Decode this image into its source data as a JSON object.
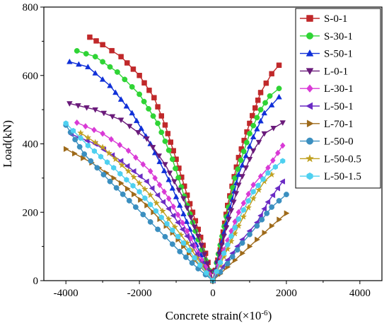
{
  "chart_data": {
    "type": "line",
    "title": "",
    "xlabel": "Concrete strain(×10",
    "xlabel_sup": "-6",
    "xlabel_suffix": ")",
    "ylabel": "Load(kN)",
    "xlim": [
      -4600,
      4600
    ],
    "ylim": [
      0,
      800
    ],
    "xticks": [
      -4000,
      -2000,
      0,
      2000,
      4000
    ],
    "yticks": [
      0,
      200,
      400,
      600,
      800
    ],
    "legend_position": "top-right",
    "grid": false,
    "series": [
      {
        "name": "S-0-1",
        "color": "#c0282a",
        "marker": "square",
        "left": [
          [
            -3350,
            712
          ],
          [
            -3000,
            690
          ],
          [
            -2500,
            655
          ],
          [
            -2000,
            600
          ],
          [
            -1600,
            535
          ],
          [
            -1300,
            455
          ],
          [
            -1000,
            355
          ],
          [
            -700,
            250
          ],
          [
            -400,
            150
          ],
          [
            -200,
            80
          ],
          [
            0,
            0
          ]
        ],
        "right": [
          [
            0,
            0
          ],
          [
            200,
            90
          ],
          [
            400,
            220
          ],
          [
            700,
            360
          ],
          [
            1000,
            460
          ],
          [
            1300,
            550
          ],
          [
            1600,
            605
          ],
          [
            1800,
            630
          ]
        ]
      },
      {
        "name": "S-30-1",
        "color": "#2fd435",
        "marker": "circle",
        "left": [
          [
            -3700,
            672
          ],
          [
            -3200,
            655
          ],
          [
            -2600,
            610
          ],
          [
            -2000,
            545
          ],
          [
            -1500,
            460
          ],
          [
            -1100,
            355
          ],
          [
            -700,
            220
          ],
          [
            -400,
            120
          ],
          [
            -200,
            60
          ],
          [
            0,
            0
          ]
        ],
        "right": [
          [
            0,
            0
          ],
          [
            250,
            130
          ],
          [
            600,
            300
          ],
          [
            1000,
            430
          ],
          [
            1300,
            500
          ],
          [
            1550,
            540
          ],
          [
            1800,
            562
          ]
        ]
      },
      {
        "name": "S-50-1",
        "color": "#1030d8",
        "marker": "triangle",
        "left": [
          [
            -3900,
            640
          ],
          [
            -3400,
            625
          ],
          [
            -2800,
            570
          ],
          [
            -2200,
            490
          ],
          [
            -1700,
            400
          ],
          [
            -1200,
            295
          ],
          [
            -800,
            195
          ],
          [
            -450,
            105
          ],
          [
            -200,
            45
          ],
          [
            0,
            0
          ]
        ],
        "right": [
          [
            0,
            0
          ],
          [
            300,
            140
          ],
          [
            700,
            310
          ],
          [
            1100,
            420
          ],
          [
            1400,
            490
          ],
          [
            1800,
            537
          ]
        ]
      },
      {
        "name": "L-0-1",
        "color": "#6a1a7a",
        "marker": "triangle-down",
        "left": [
          [
            -3900,
            518
          ],
          [
            -3200,
            500
          ],
          [
            -2500,
            470
          ],
          [
            -1800,
            415
          ],
          [
            -1300,
            340
          ],
          [
            -800,
            240
          ],
          [
            -400,
            130
          ],
          [
            -150,
            50
          ],
          [
            0,
            0
          ]
        ],
        "right": [
          [
            0,
            0
          ],
          [
            300,
            130
          ],
          [
            700,
            280
          ],
          [
            1100,
            380
          ],
          [
            1400,
            430
          ],
          [
            1900,
            462
          ]
        ]
      },
      {
        "name": "L-30-1",
        "color": "#d93ad6",
        "marker": "diamond",
        "left": [
          [
            -3700,
            462
          ],
          [
            -3000,
            430
          ],
          [
            -2300,
            380
          ],
          [
            -1700,
            320
          ],
          [
            -1200,
            240
          ],
          [
            -700,
            145
          ],
          [
            -300,
            60
          ],
          [
            0,
            0
          ]
        ],
        "right": [
          [
            0,
            0
          ],
          [
            300,
            90
          ],
          [
            700,
            200
          ],
          [
            1100,
            280
          ],
          [
            1500,
            330
          ],
          [
            1900,
            395
          ]
        ]
      },
      {
        "name": "L-50-1",
        "color": "#6a2ac4",
        "marker": "triangle-left",
        "left": [
          [
            -3850,
            428
          ],
          [
            -3200,
            400
          ],
          [
            -2500,
            350
          ],
          [
            -1800,
            290
          ],
          [
            -1200,
            210
          ],
          [
            -700,
            130
          ],
          [
            -300,
            50
          ],
          [
            0,
            0
          ]
        ],
        "right": [
          [
            0,
            0
          ],
          [
            400,
            60
          ],
          [
            800,
            120
          ],
          [
            1200,
            170
          ],
          [
            1500,
            230
          ],
          [
            1900,
            290
          ]
        ]
      },
      {
        "name": "L-70-1",
        "color": "#9e6a1a",
        "marker": "triangle-right",
        "left": [
          [
            -4000,
            385
          ],
          [
            -3300,
            345
          ],
          [
            -2500,
            285
          ],
          [
            -1800,
            220
          ],
          [
            -1100,
            140
          ],
          [
            -500,
            60
          ],
          [
            0,
            0
          ]
        ],
        "right": [
          [
            0,
            0
          ],
          [
            400,
            40
          ],
          [
            800,
            80
          ],
          [
            1200,
            120
          ],
          [
            1600,
            160
          ],
          [
            2000,
            197
          ]
        ]
      },
      {
        "name": "L-50-0",
        "color": "#3b8fc0",
        "marker": "circle",
        "left": [
          [
            -4000,
            455
          ],
          [
            -3500,
            370
          ],
          [
            -2800,
            290
          ],
          [
            -2100,
            215
          ],
          [
            -1500,
            150
          ],
          [
            -900,
            85
          ],
          [
            -400,
            35
          ],
          [
            0,
            0
          ]
        ],
        "right": [
          [
            0,
            0
          ],
          [
            400,
            50
          ],
          [
            800,
            110
          ],
          [
            1200,
            160
          ],
          [
            1600,
            215
          ],
          [
            2000,
            252
          ]
        ]
      },
      {
        "name": "L-50-0.5",
        "color": "#c0a020",
        "marker": "star",
        "left": [
          [
            -3600,
            432
          ],
          [
            -3000,
            390
          ],
          [
            -2300,
            320
          ],
          [
            -1700,
            250
          ],
          [
            -1200,
            180
          ],
          [
            -700,
            110
          ],
          [
            -300,
            45
          ],
          [
            0,
            0
          ]
        ],
        "right": [
          [
            0,
            0
          ],
          [
            300,
            70
          ],
          [
            700,
            160
          ],
          [
            1100,
            240
          ],
          [
            1400,
            290
          ],
          [
            1600,
            310
          ]
        ]
      },
      {
        "name": "L-50-1.5",
        "color": "#4ed0f0",
        "marker": "hexagon",
        "left": [
          [
            -4000,
            460
          ],
          [
            -3400,
            395
          ],
          [
            -2700,
            330
          ],
          [
            -2000,
            260
          ],
          [
            -1400,
            185
          ],
          [
            -800,
            110
          ],
          [
            -350,
            45
          ],
          [
            0,
            0
          ]
        ],
        "right": [
          [
            0,
            0
          ],
          [
            300,
            80
          ],
          [
            700,
            180
          ],
          [
            1100,
            260
          ],
          [
            1500,
            315
          ],
          [
            1900,
            350
          ]
        ]
      }
    ]
  }
}
